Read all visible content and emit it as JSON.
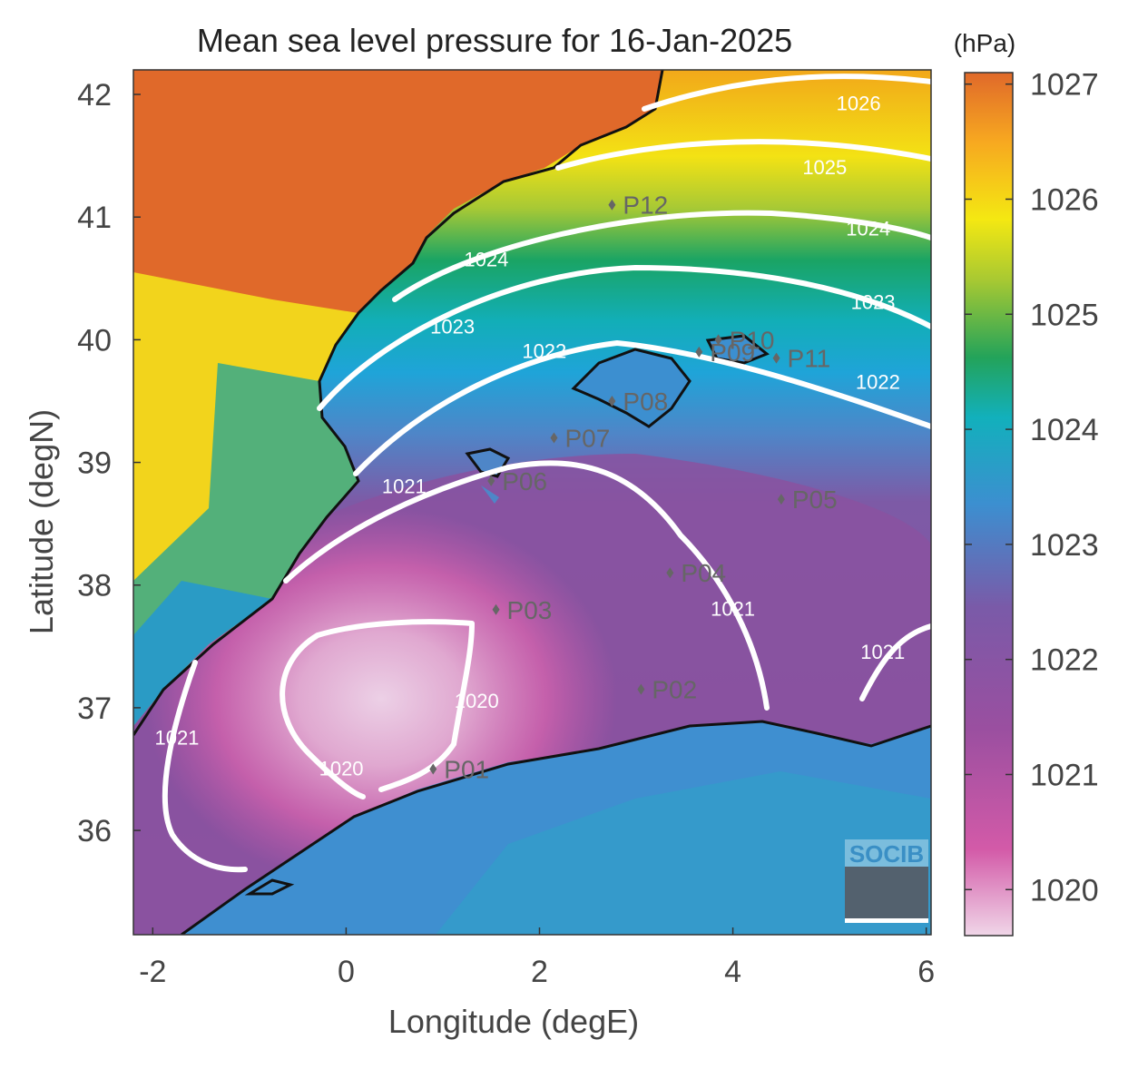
{
  "title": "Mean sea level pressure for 16-Jan-2025",
  "xlabel": "Longitude (degE)",
  "ylabel": "Latitude (degN)",
  "colorbar": {
    "unit": "(hPa)",
    "ticks": [
      "1027",
      "1026",
      "1025",
      "1024",
      "1023",
      "1022",
      "1021",
      "1020"
    ],
    "tick_values": [
      1027,
      1026,
      1025,
      1024,
      1023,
      1022,
      1021,
      1020
    ],
    "range": [
      1019.6,
      1027.1
    ],
    "colors": [
      "#f0d6e8",
      "#d35aa8",
      "#7a4e9c",
      "#3c8fd0",
      "#14b3b8",
      "#23a35a",
      "#a8c932",
      "#f4e812",
      "#f7a820",
      "#e0692a"
    ]
  },
  "logo": "SOCIB",
  "chart_data": {
    "type": "heatmap",
    "title": "Mean sea level pressure for 16-Jan-2025",
    "xlabel": "Longitude (degE)",
    "ylabel": "Latitude (degN)",
    "xlim": [
      -2.2,
      6.05
    ],
    "ylim": [
      35.15,
      42.2
    ],
    "xticks": [
      -2,
      0,
      2,
      4,
      6
    ],
    "yticks": [
      36,
      37,
      38,
      39,
      40,
      41,
      42
    ],
    "contour_labels": [
      {
        "text": "1026",
        "lon": 5.3,
        "lat": 41.87
      },
      {
        "text": "1025",
        "lon": 4.95,
        "lat": 41.35
      },
      {
        "text": "1024",
        "lon": 1.45,
        "lat": 40.6
      },
      {
        "text": "1024",
        "lon": 5.4,
        "lat": 40.85
      },
      {
        "text": "1023",
        "lon": 1.1,
        "lat": 40.05
      },
      {
        "text": "1023",
        "lon": 5.45,
        "lat": 40.25
      },
      {
        "text": "1022",
        "lon": 2.05,
        "lat": 39.85
      },
      {
        "text": "1022",
        "lon": 5.5,
        "lat": 39.6
      },
      {
        "text": "1021",
        "lon": 0.6,
        "lat": 38.75
      },
      {
        "text": "1021",
        "lon": 4.0,
        "lat": 37.75
      },
      {
        "text": "1021",
        "lon": -1.75,
        "lat": 36.7
      },
      {
        "text": "1021",
        "lon": 5.55,
        "lat": 37.4
      },
      {
        "text": "1020",
        "lon": 1.35,
        "lat": 37.0
      },
      {
        "text": "1020",
        "lon": -0.05,
        "lat": 36.45
      }
    ],
    "points": [
      {
        "label": "P01",
        "lon": 0.9,
        "lat": 36.5
      },
      {
        "label": "P02",
        "lon": 3.05,
        "lat": 37.15
      },
      {
        "label": "P03",
        "lon": 1.55,
        "lat": 37.8
      },
      {
        "label": "P04",
        "lon": 3.35,
        "lat": 38.1
      },
      {
        "label": "P05",
        "lon": 4.5,
        "lat": 38.7
      },
      {
        "label": "P06",
        "lon": 1.5,
        "lat": 38.85
      },
      {
        "label": "P07",
        "lon": 2.15,
        "lat": 39.2
      },
      {
        "label": "P08",
        "lon": 2.75,
        "lat": 39.5
      },
      {
        "label": "P09",
        "lon": 3.65,
        "lat": 39.9
      },
      {
        "label": "P10",
        "lon": 3.85,
        "lat": 40.0
      },
      {
        "label": "P11",
        "lon": 4.45,
        "lat": 39.85
      },
      {
        "label": "P12",
        "lon": 2.75,
        "lat": 41.1
      }
    ]
  }
}
